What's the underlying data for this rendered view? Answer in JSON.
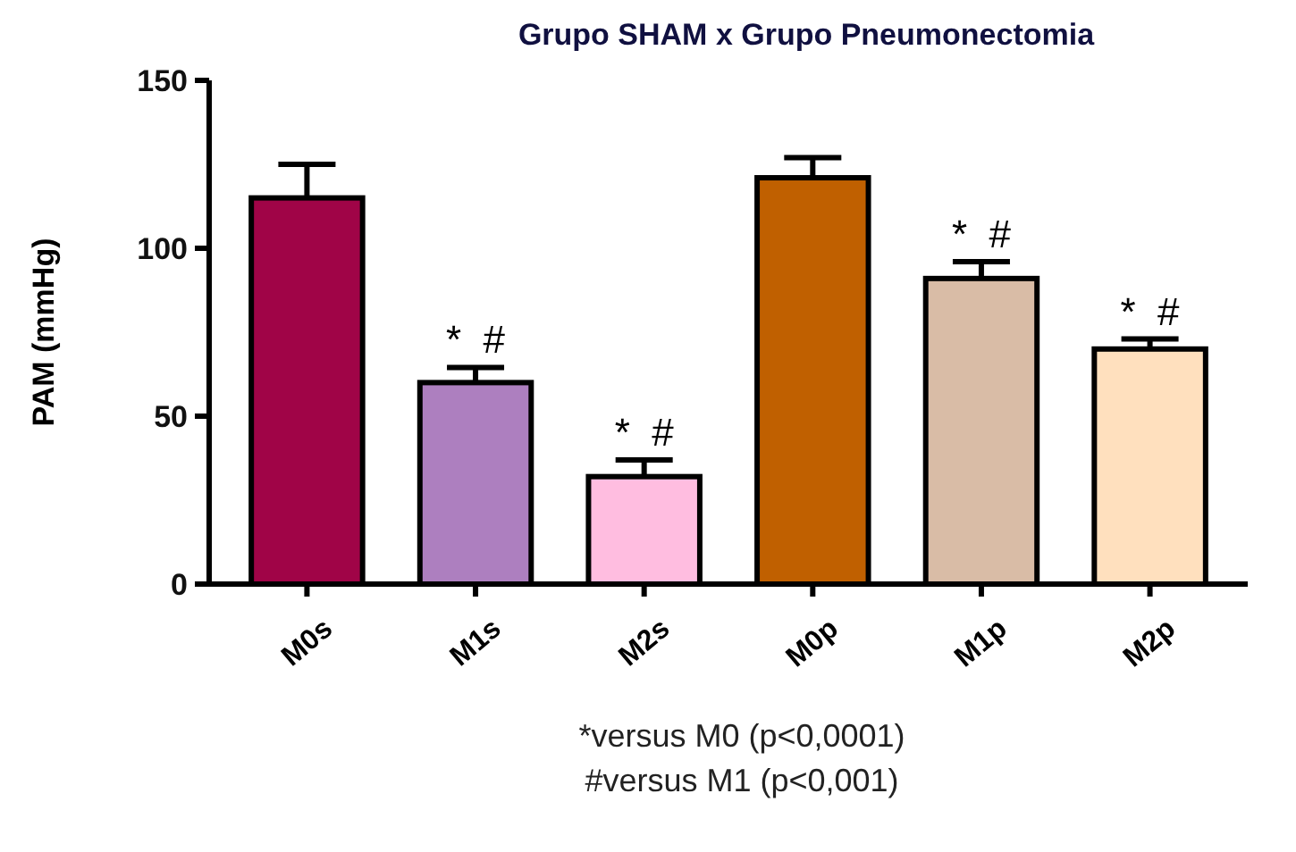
{
  "chart_data": {
    "type": "bar",
    "title": "Grupo SHAM x Grupo Pneumonectomia",
    "ylabel": "PAM (mmHg)",
    "categories": [
      "M0s",
      "M1s",
      "M2s",
      "M0p",
      "M1p",
      "M2p"
    ],
    "values": [
      115,
      60,
      32,
      121,
      91,
      70
    ],
    "errors": [
      10,
      4.5,
      5,
      6,
      5,
      3
    ],
    "colors": [
      "#a00447",
      "#ad7fbf",
      "#ffbde0",
      "#c06000",
      "#d9bca6",
      "#ffe0be"
    ],
    "ylim": [
      0,
      150
    ],
    "yticks": [
      0,
      50,
      100,
      150
    ],
    "grid": false,
    "annotations": [
      {
        "text": "*  #",
        "x": "M1s",
        "y": 64.5
      },
      {
        "text": "*  #",
        "x": "M2s",
        "y": 37
      },
      {
        "text": "*  #",
        "x": "M1p",
        "y": 96
      },
      {
        "text": "*  #",
        "x": "M2p",
        "y": 73
      },
      "*versus M0 (p<0,0001)",
      "#versus M1 (p<0,001)"
    ]
  }
}
